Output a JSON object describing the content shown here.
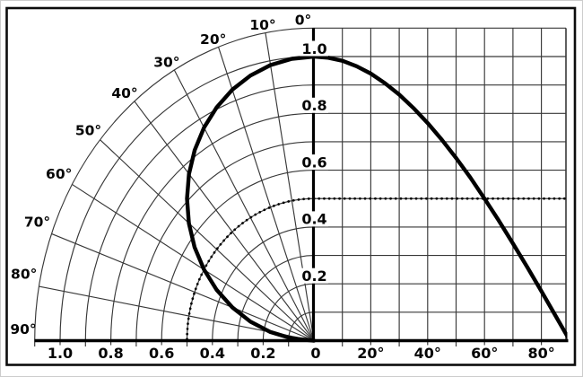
{
  "figure": {
    "kind": "antenna-directivity-pattern",
    "background": "#ffffff",
    "ink_color": "#000000",
    "grid_color": "#383838"
  },
  "chart_data": {
    "type": "line",
    "title": "",
    "description": "Cosine pattern cos(theta) shown as a polar quarter-grid plot (left) and a rectangular amplitude-vs-angle plot (right); dotted curve marks the constant 0.5 half-power level (crosses the solid curve at 60 degrees).",
    "polar_axis": {
      "angle_tick_labels": [
        "0°",
        "10°",
        "20°",
        "30°",
        "40°",
        "50°",
        "60°",
        "70°",
        "80°",
        "90°"
      ],
      "angle_tick_deg": [
        0,
        10,
        20,
        30,
        40,
        50,
        60,
        70,
        80,
        90
      ],
      "radial_tick_labels": [
        "1.0",
        "0.8",
        "0.6",
        "0.4",
        "0.2"
      ],
      "radial_tick_values": [
        1.0,
        0.8,
        0.6,
        0.4,
        0.2
      ],
      "r_max": 1.1,
      "r_grid_step": 0.1,
      "grid": "on"
    },
    "cartesian_axis": {
      "x_tick_labels": [
        "0",
        "20°",
        "40°",
        "60°",
        "80°"
      ],
      "x_tick_deg": [
        0,
        20,
        40,
        60,
        80
      ],
      "x_range_deg": [
        0,
        90
      ],
      "x_grid_step_deg": 10,
      "y_tick_labels": [
        "1.0",
        "0.8",
        "0.6",
        "0.4",
        "0.2"
      ],
      "y_tick_values": [
        1.0,
        0.8,
        0.6,
        0.4,
        0.2
      ],
      "y_range": [
        0,
        1.1
      ],
      "y_grid_step": 0.1,
      "grid": "on",
      "legend": "none"
    },
    "series": [
      {
        "name": "cosine-pattern",
        "style": "solid",
        "angles_deg": [
          0,
          5,
          10,
          15,
          20,
          25,
          30,
          35,
          40,
          45,
          50,
          55,
          60,
          65,
          70,
          75,
          80,
          85,
          90
        ],
        "values": [
          1.0,
          0.996,
          0.985,
          0.966,
          0.94,
          0.906,
          0.866,
          0.819,
          0.766,
          0.707,
          0.643,
          0.574,
          0.5,
          0.423,
          0.342,
          0.259,
          0.174,
          0.087,
          0.0
        ]
      },
      {
        "name": "half-power-level",
        "style": "dotted",
        "value": 0.5
      }
    ]
  }
}
